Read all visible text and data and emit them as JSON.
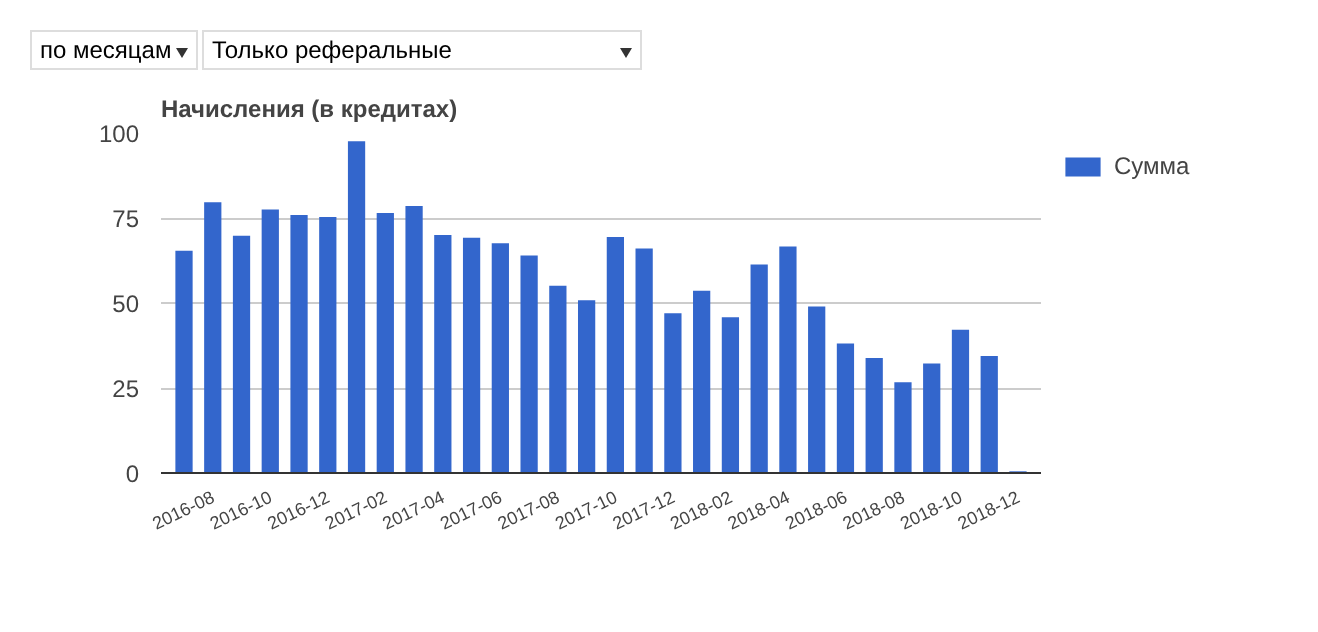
{
  "chart_data": {
    "type": "bar",
    "title": "Начисления (в кредитах)",
    "annotations": [
      "по месяцам",
      "Только реферальные"
    ],
    "categories": [
      null,
      "2016-08",
      null,
      "2016-10",
      null,
      "2016-12",
      null,
      "2017-02",
      null,
      "2017-04",
      null,
      "2017-06",
      null,
      "2017-08",
      null,
      "2017-10",
      null,
      "2017-12",
      null,
      "2018-02",
      null,
      "2018-04",
      null,
      "2018-06",
      null,
      "2018-08",
      null,
      "2018-10",
      null,
      "2018-12"
    ],
    "series": [
      {
        "name": "Сумма",
        "color": "#3366cc",
        "values": [
          65.4,
          79.6,
          69.8,
          77.5,
          75.9,
          75.3,
          97.6,
          76.5,
          78.5,
          70,
          69.2,
          67.6,
          64,
          55.1,
          50.8,
          69.4,
          66,
          47,
          53.6,
          45.8,
          61.3,
          66.6,
          49,
          38.1,
          33.8,
          26.7,
          32.2,
          42.1,
          34.4,
          0.5
        ]
      }
    ],
    "ylim": [
      0,
      100
    ],
    "yticks": [
      0,
      25,
      50,
      75,
      100
    ],
    "grid": "y",
    "legend": "top right"
  }
}
